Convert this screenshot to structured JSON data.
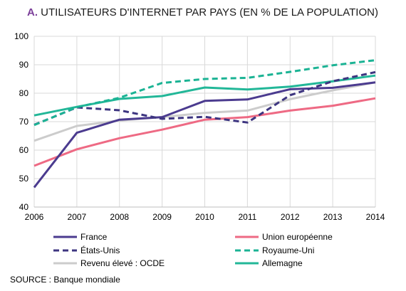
{
  "title": {
    "letter": "A.",
    "text": "UTILISATEURS D'INTERNET PAR PAYS (EN % DE LA POPULATION)"
  },
  "source": "SOURCE : Banque mondiale",
  "chart_data": {
    "type": "line",
    "title": "UTILISATEURS D'INTERNET PAR PAYS (EN % DE LA POPULATION)",
    "xlabel": "",
    "ylabel": "",
    "x": [
      "2006",
      "2007",
      "2008",
      "2009",
      "2010",
      "2011",
      "2012",
      "2013",
      "2014"
    ],
    "ylim": [
      40,
      100
    ],
    "yticks": [
      40,
      50,
      60,
      70,
      80,
      90,
      100
    ],
    "grid": true,
    "legend_position": "bottom",
    "series": [
      {
        "name": "France",
        "color": "#4b3b8f",
        "dash": "solid",
        "values": [
          46.9,
          66.1,
          70.7,
          71.6,
          77.3,
          77.8,
          81.4,
          81.9,
          83.8
        ]
      },
      {
        "name": "Union européenne",
        "color": "#ee6a84",
        "dash": "solid",
        "values": [
          54.5,
          60.3,
          64.2,
          67.2,
          70.7,
          71.6,
          73.9,
          75.6,
          78.2
        ]
      },
      {
        "name": "États-Unis",
        "color": "#3d3580",
        "dash": "dashed",
        "values": [
          68.9,
          75.0,
          74.0,
          71.0,
          71.7,
          69.7,
          79.3,
          84.2,
          87.4
        ]
      },
      {
        "name": "Royaume-Uni",
        "color": "#1bb394",
        "dash": "dashed",
        "values": [
          68.8,
          75.1,
          78.4,
          83.6,
          85.0,
          85.4,
          87.5,
          89.8,
          91.6
        ]
      },
      {
        "name": "Revenu élevé : OCDE",
        "color": "#cccccc",
        "dash": "solid",
        "values": [
          63.3,
          68.5,
          70.4,
          71.6,
          73.1,
          73.9,
          77.9,
          81.0,
          83.8
        ]
      },
      {
        "name": "Allemagne",
        "color": "#22b798",
        "dash": "solid",
        "values": [
          72.2,
          75.2,
          78.0,
          79.0,
          82.0,
          81.3,
          82.3,
          84.2,
          86.2
        ]
      }
    ]
  }
}
